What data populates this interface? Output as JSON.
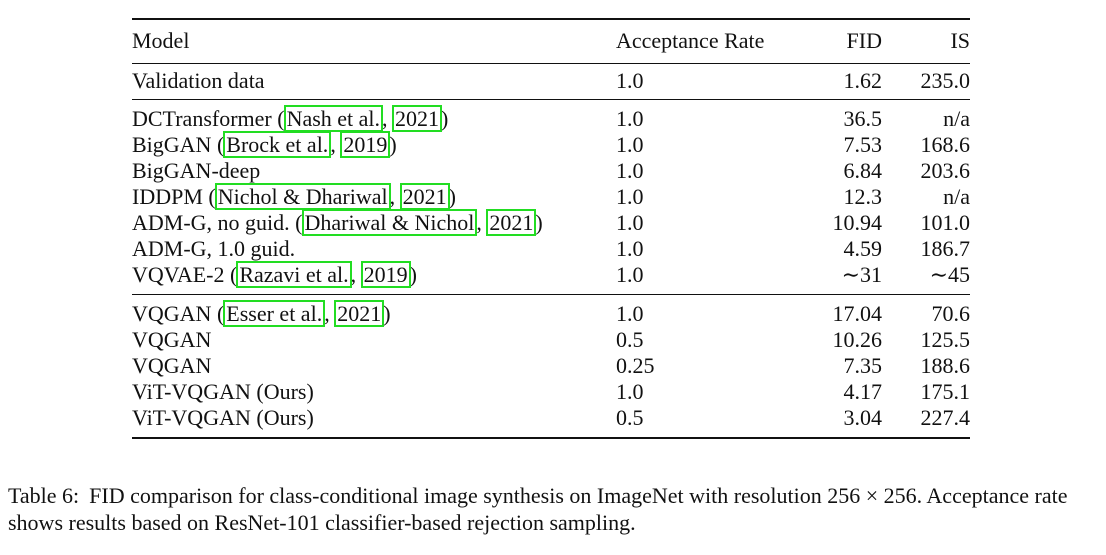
{
  "table": {
    "headers": [
      "Model",
      "Acceptance Rate",
      "FID",
      "IS"
    ],
    "groups": [
      {
        "rows": [
          {
            "model": "Validation data",
            "acc": "1.0",
            "fid": "1.62",
            "is": "235.0"
          }
        ]
      },
      {
        "rows": [
          {
            "model": "DCTransformer",
            "cite_authors": "Nash et al.",
            "cite_year": "2021",
            "acc": "1.0",
            "fid": "36.5",
            "is": "n/a"
          },
          {
            "model": "BigGAN",
            "cite_authors": "Brock et al.",
            "cite_year": "2019",
            "acc": "1.0",
            "fid": "7.53",
            "is": "168.6"
          },
          {
            "model": "BigGAN-deep",
            "acc": "1.0",
            "fid": "6.84",
            "is": "203.6"
          },
          {
            "model": "IDDPM",
            "cite_authors": "Nichol & Dhariwal",
            "cite_year": "2021",
            "acc": "1.0",
            "fid": "12.3",
            "is": "n/a"
          },
          {
            "model": "ADM-G, no guid.",
            "cite_authors": "Dhariwal & Nichol",
            "cite_year": "2021",
            "acc": "1.0",
            "fid": "10.94",
            "is": "101.0"
          },
          {
            "model": "ADM-G, 1.0 guid.",
            "acc": "1.0",
            "fid": "4.59",
            "is": "186.7"
          },
          {
            "model": "VQVAE-2",
            "cite_authors": "Razavi et al.",
            "cite_year": "2019",
            "acc": "1.0",
            "fid": "∼31",
            "is": "∼45"
          }
        ]
      },
      {
        "rows": [
          {
            "model": "VQGAN",
            "cite_authors": "Esser et al.",
            "cite_year": "2021",
            "acc": "1.0",
            "fid": "17.04",
            "is": "70.6"
          },
          {
            "model": "VQGAN",
            "acc": "0.5",
            "fid": "10.26",
            "is": "125.5"
          },
          {
            "model": "VQGAN",
            "acc": "0.25",
            "fid": "7.35",
            "is": "188.6"
          },
          {
            "model": "ViT-VQGAN (Ours)",
            "bold": true,
            "acc": "1.0",
            "fid": "4.17",
            "is": "175.1"
          },
          {
            "model": "ViT-VQGAN (Ours)",
            "bold": true,
            "acc": "0.5",
            "fid": "3.04",
            "is": "227.4"
          }
        ]
      }
    ]
  },
  "caption": {
    "label": "Table 6:",
    "text": "FID comparison for class-conditional image synthesis on ImageNet with resolution 256 × 256. Acceptance rate shows results based on ResNet-101 classifier-based rejection sampling."
  },
  "colors": {
    "citation_box": "#22dd22",
    "text": "#111111"
  }
}
